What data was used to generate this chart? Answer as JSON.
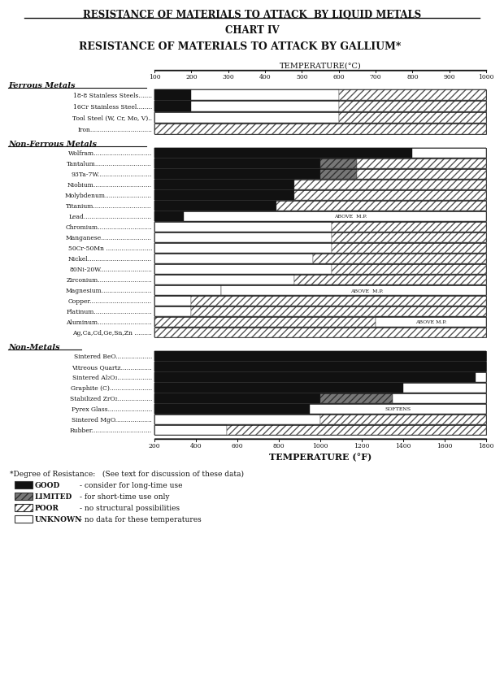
{
  "title_top": "RESISTANCE OF MATERIALS TO ATTACK  BY LIQUID METALS",
  "title_chart": "CHART IV",
  "title_sub": "RESISTANCE OF MATERIALS TO ATTACK BY GALLIUM*",
  "temp_c_label": "TEMPERATURE(°C)",
  "temp_c_ticks": [
    100,
    200,
    300,
    400,
    500,
    600,
    700,
    800,
    900,
    1000
  ],
  "temp_f_label": "TEMPERATURE (°F)",
  "temp_f_ticks": [
    200,
    400,
    600,
    800,
    1000,
    1200,
    1400,
    1600,
    1800
  ],
  "section_headers": [
    "Ferrous Metals",
    "Non-Ferrous Metals",
    "Non-Metals"
  ],
  "background_color": "#ffffff",
  "GOOD_COLOR": "#111111",
  "LIMITED_COLOR": "#777777",
  "POOR_FC": "#ffffff",
  "UNKNOWN_FC": "#ffffff"
}
